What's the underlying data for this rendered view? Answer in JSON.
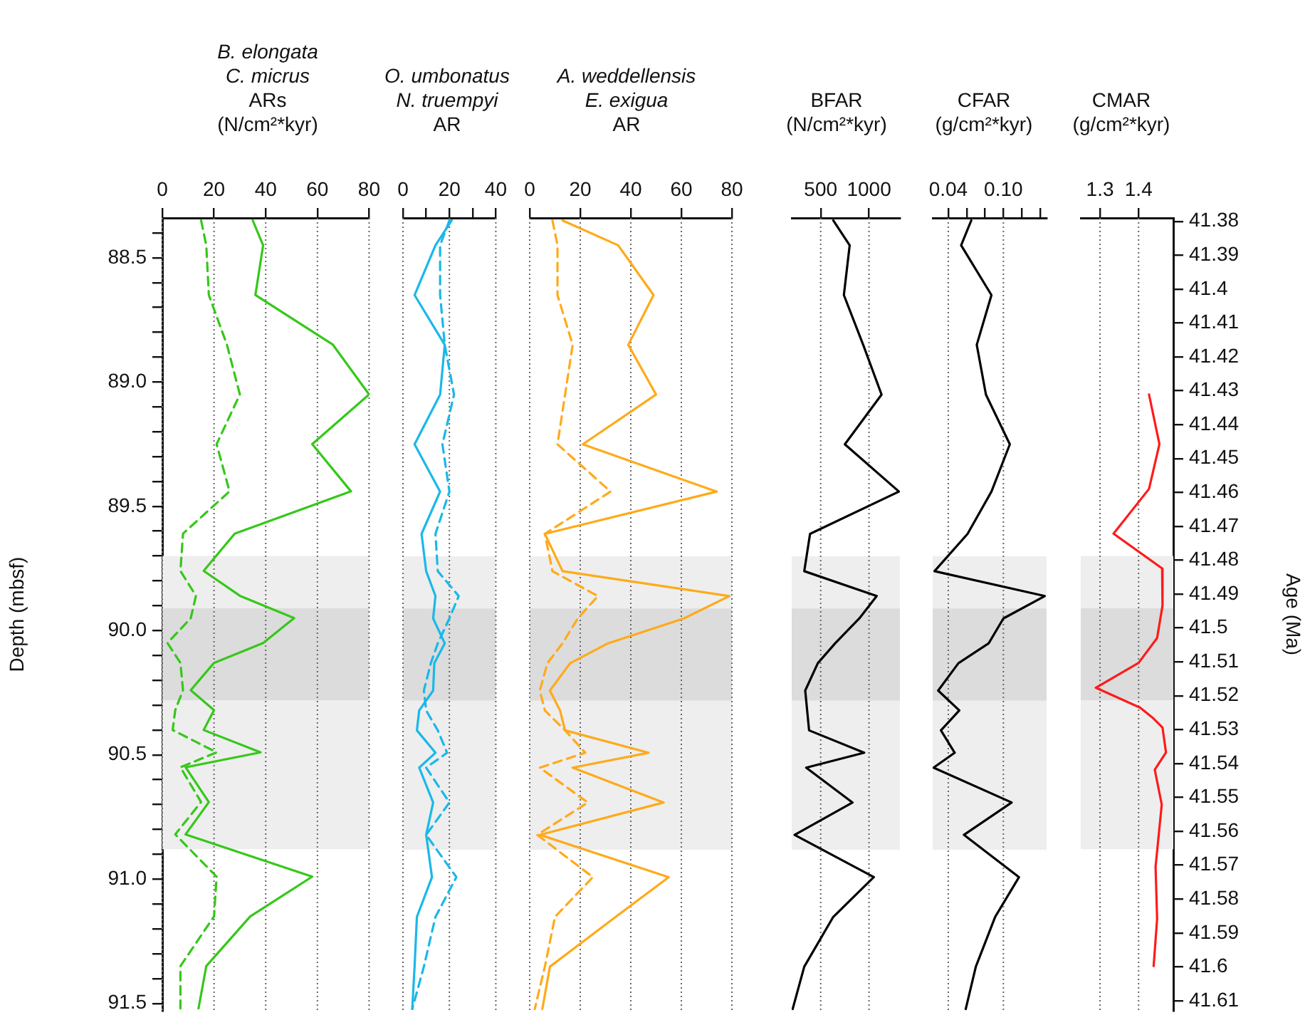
{
  "chart_data": [
    {
      "type": "line",
      "title": "B. elongata\nC. micrus",
      "xlabel": "ARs\n(N/cm²*kyr)",
      "ylabel": "Depth (mbsf)",
      "xlim": [
        0,
        80
      ],
      "xticks": [
        0,
        20,
        40,
        60,
        80
      ],
      "ylim": [
        91.53,
        88.34
      ],
      "yticks": [
        {
          "value": 88.4,
          "label": null
        },
        88.5,
        {
          "value": 88.6,
          "label": null
        },
        {
          "value": 88.7,
          "label": null
        },
        {
          "value": 88.8,
          "label": null
        },
        {
          "value": 88.9,
          "label": null
        },
        {
          "value": 89,
          "label": "89.0"
        },
        {
          "value": 89.1,
          "label": null
        },
        {
          "value": 89.2,
          "label": null
        },
        {
          "value": 89.3,
          "label": null
        },
        {
          "value": 89.4,
          "label": null
        },
        89.5,
        {
          "value": 89.6,
          "label": null
        },
        {
          "value": 89.7,
          "label": null
        },
        {
          "value": 89.8,
          "label": null
        },
        {
          "value": 89.9,
          "label": null
        },
        {
          "value": 90,
          "label": "90.0"
        },
        {
          "value": 90.1,
          "label": null
        },
        {
          "value": 90.2,
          "label": null
        },
        {
          "value": 90.3,
          "label": null
        },
        {
          "value": 90.4,
          "label": null
        },
        90.5,
        {
          "value": 90.6,
          "label": null
        },
        {
          "value": 90.7,
          "label": null
        },
        {
          "value": 90.8,
          "label": null
        },
        {
          "value": 90.9,
          "label": null
        },
        {
          "value": 91,
          "label": "91.0"
        },
        {
          "value": 91.1,
          "label": null
        },
        {
          "value": 91.2,
          "label": null
        },
        {
          "value": 91.3,
          "label": null
        },
        {
          "value": 91.4,
          "label": null
        },
        91.5
      ],
      "grid": "x",
      "bands": [
        {
          "axis": "y",
          "from": 89.7,
          "to": 90.88,
          "color": "#eeeeee"
        },
        {
          "axis": "y",
          "from": 89.91,
          "to": 90.28,
          "color": "#dcdcdc"
        }
      ],
      "series": [
        {
          "color": "#35c819",
          "line_style": "solid",
          "x": [
            35,
            39,
            36,
            66,
            80,
            58,
            73,
            28,
            16,
            30,
            51,
            39,
            20,
            11,
            20,
            16,
            38,
            9,
            18,
            9,
            58,
            34,
            17,
            14
          ],
          "values": [
            88.35,
            88.45,
            88.65,
            88.85,
            89.05,
            89.25,
            89.44,
            89.61,
            89.76,
            89.86,
            89.95,
            90.05,
            90.13,
            90.24,
            90.32,
            90.4,
            90.49,
            90.55,
            90.69,
            90.82,
            90.99,
            91.15,
            91.35,
            91.52
          ]
        },
        {
          "color": "#35c819",
          "line_style": "dashed",
          "x": [
            15,
            17,
            18,
            25,
            30,
            21,
            26,
            8,
            7,
            13,
            11,
            2,
            7,
            8,
            5,
            4,
            21,
            7,
            15,
            5,
            21,
            20,
            7,
            7
          ],
          "values": [
            88.35,
            88.45,
            88.65,
            88.85,
            89.05,
            89.25,
            89.44,
            89.61,
            89.76,
            89.86,
            89.95,
            90.05,
            90.13,
            90.24,
            90.32,
            90.4,
            90.49,
            90.55,
            90.69,
            90.82,
            90.99,
            91.15,
            91.35,
            91.52
          ]
        }
      ]
    },
    {
      "type": "line",
      "title": "O. umbonatus\nN. truempyi",
      "xlabel": "AR",
      "xlim": [
        0,
        40
      ],
      "xticks": [
        0,
        {
          "value": 10,
          "label": null
        },
        20,
        {
          "value": 30,
          "label": null
        },
        40
      ],
      "ylim": [
        91.53,
        88.34
      ],
      "tick_labels": "x",
      "grid": "x",
      "bands": [
        {
          "axis": "y",
          "from": 89.7,
          "to": 90.88,
          "color": "#eeeeee"
        },
        {
          "axis": "y",
          "from": 89.91,
          "to": 90.28,
          "color": "#dcdcdc"
        }
      ],
      "series": [
        {
          "color": "#1ab8e8",
          "line_style": "solid",
          "x": [
            21,
            14,
            5,
            18,
            16,
            5,
            16,
            8,
            10,
            14,
            13,
            18,
            13.5,
            13,
            7,
            6,
            14,
            7,
            13,
            10,
            12.5,
            6,
            5,
            4
          ],
          "values": [
            88.35,
            88.45,
            88.65,
            88.85,
            89.05,
            89.25,
            89.44,
            89.61,
            89.76,
            89.86,
            89.95,
            90.05,
            90.13,
            90.24,
            90.32,
            90.4,
            90.49,
            90.55,
            90.69,
            90.82,
            90.99,
            91.15,
            91.35,
            91.52
          ]
        },
        {
          "color": "#1ab8e8",
          "line_style": "dashed",
          "x": [
            20,
            16,
            16,
            18,
            22,
            17,
            20,
            14,
            15,
            24,
            20,
            15,
            12,
            9,
            10,
            15,
            19,
            10,
            20,
            10,
            23,
            14,
            9,
            4
          ],
          "values": [
            88.35,
            88.45,
            88.65,
            88.85,
            89.05,
            89.25,
            89.44,
            89.61,
            89.76,
            89.86,
            89.95,
            90.05,
            90.13,
            90.24,
            90.32,
            90.4,
            90.49,
            90.55,
            90.69,
            90.82,
            90.99,
            91.15,
            91.35,
            91.52
          ]
        }
      ]
    },
    {
      "type": "line",
      "title": "A. weddellensis\nE. exigua",
      "xlabel": "AR",
      "xlim": [
        0,
        80
      ],
      "xticks": [
        0,
        20,
        40,
        60,
        80
      ],
      "ylim": [
        91.53,
        88.34
      ],
      "tick_labels": "x",
      "grid": "x",
      "bands": [
        {
          "axis": "y",
          "from": 89.7,
          "to": 90.88,
          "color": "#eeeeee"
        },
        {
          "axis": "y",
          "from": 89.91,
          "to": 90.28,
          "color": "#dcdcdc"
        }
      ],
      "series": [
        {
          "color": "#ffaa1a",
          "line_style": "solid",
          "x": [
            13,
            35,
            49,
            39,
            50,
            21,
            74,
            6,
            13,
            79,
            61,
            31,
            16,
            8,
            12,
            14,
            47,
            17,
            53,
            4,
            55,
            34,
            8,
            5
          ],
          "values": [
            88.35,
            88.45,
            88.65,
            88.85,
            89.05,
            89.25,
            89.44,
            89.61,
            89.76,
            89.86,
            89.95,
            90.05,
            90.13,
            90.24,
            90.32,
            90.4,
            90.49,
            90.55,
            90.69,
            90.82,
            90.99,
            91.15,
            91.35,
            91.52
          ]
        },
        {
          "color": "#ffaa1a",
          "line_style": "dashed",
          "x": [
            9,
            11,
            11,
            17,
            14,
            11,
            32,
            6,
            9,
            27,
            19,
            13,
            7,
            4,
            6,
            14,
            22,
            4,
            23,
            3,
            25,
            10,
            6,
            2
          ],
          "values": [
            88.35,
            88.45,
            88.65,
            88.85,
            89.05,
            89.25,
            89.44,
            89.61,
            89.76,
            89.86,
            89.95,
            90.05,
            90.13,
            90.24,
            90.32,
            90.4,
            90.49,
            90.55,
            90.69,
            90.82,
            90.99,
            91.15,
            91.35,
            91.52
          ]
        }
      ]
    },
    {
      "type": "line",
      "xlabel": "BFAR\n(N/cm²*kyr)",
      "xlim": [
        200,
        1320
      ],
      "xticks": [
        500,
        1000
      ],
      "ylim": [
        91.53,
        88.34
      ],
      "tick_labels": "x",
      "grid": "x",
      "bands": [
        {
          "axis": "y",
          "from": 89.7,
          "to": 90.88,
          "color": "#eeeeee"
        },
        {
          "axis": "y",
          "from": 89.91,
          "to": 90.28,
          "color": "#dcdcdc"
        }
      ],
      "series": [
        {
          "color": "#000000",
          "line_style": "solid",
          "x": [
            630,
            800,
            740,
            940,
            1130,
            750,
            1310,
            390,
            330,
            1080,
            900,
            650,
            470,
            340,
            360,
            380,
            950,
            350,
            830,
            230,
            1050,
            630,
            330,
            210
          ],
          "values": [
            88.35,
            88.45,
            88.65,
            88.85,
            89.05,
            89.25,
            89.44,
            89.61,
            89.76,
            89.86,
            89.95,
            90.05,
            90.13,
            90.24,
            90.32,
            90.4,
            90.49,
            90.55,
            90.69,
            90.82,
            90.99,
            91.15,
            91.35,
            91.52
          ]
        }
      ]
    },
    {
      "type": "line",
      "xlabel": "CFAR\n(g/cm²*kyr)",
      "xlim": [
        0.023,
        0.147
      ],
      "xticks": [
        0.04,
        {
          "value": 0.06,
          "label": null
        },
        {
          "value": 0.08,
          "label": null
        },
        {
          "value": 0.1,
          "label": "0.10"
        },
        {
          "value": 0.12,
          "label": null
        },
        {
          "value": 0.14,
          "label": null
        }
      ],
      "ylim": [
        91.53,
        88.34
      ],
      "tick_labels": "x",
      "grid": "x",
      "bands": [
        {
          "axis": "y",
          "from": 89.7,
          "to": 90.88,
          "color": "#eeeeee"
        },
        {
          "axis": "y",
          "from": 89.91,
          "to": 90.28,
          "color": "#dcdcdc"
        }
      ],
      "series": [
        {
          "color": "#000000",
          "line_style": "solid",
          "x": [
            0.065,
            0.054,
            0.087,
            0.071,
            0.081,
            0.107,
            0.087,
            0.061,
            0.025,
            0.145,
            0.1,
            0.084,
            0.051,
            0.029,
            0.052,
            0.032,
            0.047,
            0.024,
            0.109,
            0.057,
            0.117,
            0.091,
            0.07,
            0.059
          ],
          "values": [
            88.35,
            88.45,
            88.65,
            88.85,
            89.05,
            89.25,
            89.44,
            89.61,
            89.76,
            89.86,
            89.95,
            90.05,
            90.13,
            90.24,
            90.32,
            90.4,
            90.49,
            90.55,
            90.69,
            90.82,
            90.99,
            91.15,
            91.35,
            91.52
          ]
        }
      ]
    },
    {
      "type": "line",
      "xlabel": "CMAR\n(g/cm²*kyr)",
      "y2label": "Age (Ma)",
      "xlim": [
        1.25,
        1.49
      ],
      "xticks": [
        1.3,
        1.4
      ],
      "ylim": [
        91.53,
        88.34
      ],
      "y2lim": [
        41.613,
        41.379
      ],
      "y2ticks": [
        41.38,
        41.39,
        41.4,
        41.41,
        41.42,
        41.43,
        41.44,
        41.45,
        41.46,
        41.47,
        41.48,
        41.49,
        41.5,
        41.51,
        41.52,
        41.53,
        41.54,
        41.55,
        41.56,
        41.57,
        41.58,
        41.59,
        41.6,
        41.61
      ],
      "grid": "x",
      "bands": [
        {
          "axis": "y",
          "from": 89.7,
          "to": 90.88,
          "color": "#eeeeee"
        },
        {
          "axis": "y",
          "from": 89.91,
          "to": 90.28,
          "color": "#dcdcdc"
        }
      ],
      "series": [
        {
          "color": "#ff1a1a",
          "line_style": "solid",
          "x": [
            1.427,
            1.454,
            1.427,
            1.335,
            1.461,
            1.462,
            1.448,
            1.4,
            1.289,
            1.404,
            1.436,
            1.462,
            1.471,
            1.442,
            1.46,
            1.444,
            1.448,
            1.439
          ],
          "values": [
            89.05,
            89.25,
            89.43,
            89.61,
            89.75,
            89.9,
            90.03,
            90.13,
            90.23,
            90.31,
            90.35,
            90.39,
            90.49,
            90.56,
            90.7,
            90.95,
            91.16,
            91.35
          ]
        }
      ]
    }
  ]
}
